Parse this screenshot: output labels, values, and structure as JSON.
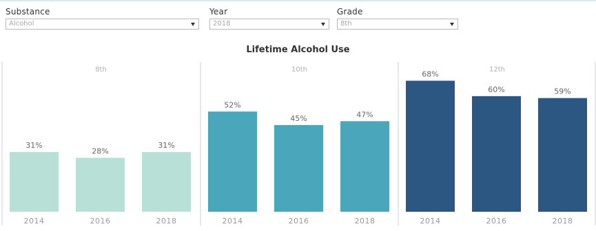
{
  "filters": {
    "substance": {
      "label": "Substance",
      "value": "Alcohol"
    },
    "year": {
      "label": "Year",
      "value": "2018"
    },
    "grade": {
      "label": "Grade",
      "value": "8th"
    }
  },
  "chart_data": {
    "type": "bar",
    "title": "Lifetime Alcohol Use",
    "panels": [
      {
        "grade": "8th",
        "color": "#b9e0d6",
        "categories": [
          "2014",
          "2016",
          "2018"
        ],
        "values": [
          31,
          28,
          31
        ],
        "labels": [
          "31%",
          "28%",
          "31%"
        ]
      },
      {
        "grade": "10th",
        "color": "#4aa6bb",
        "categories": [
          "2014",
          "2016",
          "2018"
        ],
        "values": [
          52,
          45,
          47
        ],
        "labels": [
          "52%",
          "45%",
          "47%"
        ]
      },
      {
        "grade": "12th",
        "color": "#2c5783",
        "categories": [
          "2014",
          "2016",
          "2018"
        ],
        "values": [
          68,
          60,
          59
        ],
        "labels": [
          "68%",
          "60%",
          "59%"
        ]
      }
    ],
    "ylim": [
      0,
      76
    ],
    "grid": false
  }
}
